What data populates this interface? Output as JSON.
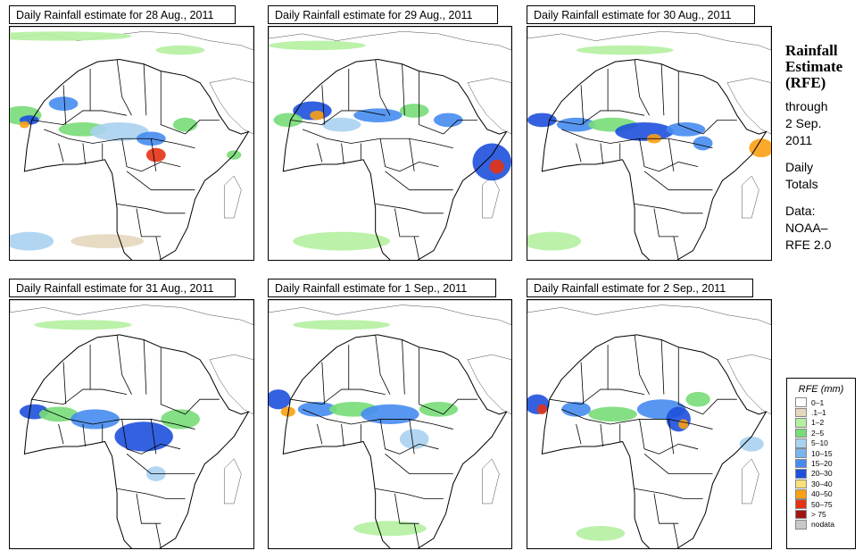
{
  "panels": [
    {
      "title": "Daily Rainfall estimate for  28 Aug., 2011"
    },
    {
      "title": "Daily Rainfall estimate for  29 Aug., 2011"
    },
    {
      "title": "Daily Rainfall estimate for  30 Aug., 2011"
    },
    {
      "title": "Daily Rainfall estimate for  31 Aug., 2011"
    },
    {
      "title": "Daily Rainfall estimate for  1 Sep., 2011"
    },
    {
      "title": "Daily Rainfall estimate for  2 Sep., 2011"
    }
  ],
  "side": {
    "title1": "Rainfall",
    "title2": "Estimate",
    "title3": "(RFE)",
    "through": "through",
    "date1": "2 Sep.",
    "date2": "2011",
    "daily1": "Daily",
    "daily2": "Totals",
    "data_label": "Data:",
    "source1": "NOAA–",
    "source2": "RFE 2.0"
  },
  "legend": {
    "title": "RFE (mm)",
    "items": [
      {
        "label": "0–1",
        "color": "#ffffff"
      },
      {
        "label": ".1–1",
        "color": "#e6d7be"
      },
      {
        "label": "1–2",
        "color": "#b4f0a0"
      },
      {
        "label": "2–5",
        "color": "#78dc78"
      },
      {
        "label": "5–10",
        "color": "#aad2f0"
      },
      {
        "label": "10–15",
        "color": "#78b4f0"
      },
      {
        "label": "15–20",
        "color": "#468cf0"
      },
      {
        "label": "20–30",
        "color": "#1e50dc"
      },
      {
        "label": "30–40",
        "color": "#fae178"
      },
      {
        "label": "40–50",
        "color": "#faa014"
      },
      {
        "label": "50–75",
        "color": "#e63214"
      },
      {
        "label": "> 75",
        "color": "#a01414"
      },
      {
        "label": "nodata",
        "color": "#c8c8c8"
      }
    ]
  }
}
